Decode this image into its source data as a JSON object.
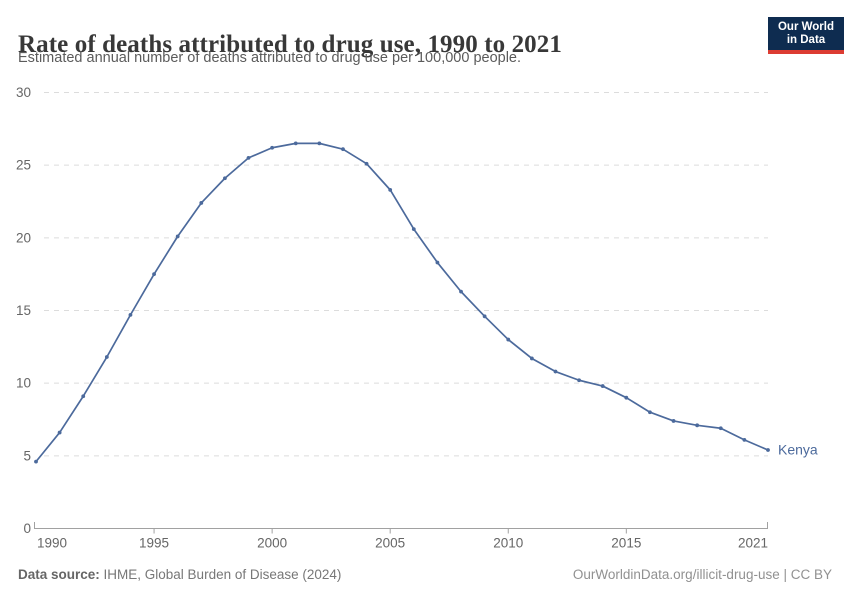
{
  "header": {
    "logo_line1": "Our World",
    "logo_line2": "in Data"
  },
  "chart_data": {
    "type": "line",
    "title": "Rate of deaths attributed to drug use, 1990 to 2021",
    "subtitle": "Estimated annual number of deaths attributed to drug use per 100,000 people.",
    "x": [
      1990,
      1991,
      1992,
      1993,
      1994,
      1995,
      1996,
      1997,
      1998,
      1999,
      2000,
      2001,
      2002,
      2003,
      2004,
      2005,
      2006,
      2007,
      2008,
      2009,
      2010,
      2011,
      2012,
      2013,
      2014,
      2015,
      2016,
      2017,
      2018,
      2019,
      2020,
      2021
    ],
    "series": [
      {
        "name": "Kenya",
        "color": "#4c6a9c",
        "values": [
          4.6,
          6.6,
          9.1,
          11.8,
          14.7,
          17.5,
          20.1,
          22.4,
          24.1,
          25.5,
          26.2,
          26.5,
          26.5,
          26.1,
          25.1,
          23.3,
          20.6,
          18.3,
          16.3,
          14.6,
          13.0,
          11.7,
          10.8,
          10.2,
          9.8,
          9.0,
          8.0,
          7.4,
          7.1,
          6.9,
          6.1,
          5.4
        ]
      }
    ],
    "ylim": [
      0,
      30
    ],
    "yticks": [
      0,
      5,
      10,
      15,
      20,
      25,
      30
    ],
    "xticks": [
      1990,
      1995,
      2000,
      2005,
      2010,
      2015,
      2021
    ],
    "grid": "horizontal dashed",
    "legend": "end-of-line label",
    "xlabel": "",
    "ylabel": ""
  },
  "footer": {
    "datasource_label": "Data source:",
    "datasource_value": " IHME, Global Burden of Disease (2024)",
    "url": "OurWorldinData.org/illicit-drug-use",
    "separator": " | ",
    "license": "CC BY"
  },
  "colors": {
    "line": "#4c6a9c",
    "logo_bg": "#0e2c50",
    "logo_red": "#dc3c32",
    "title_text": "#383838",
    "subtitle_text": "#5b5b5b",
    "axis_text": "#666666",
    "gridline": "#dcdcdc",
    "axis_line": "#a1a1a1",
    "footer_text": "#777777",
    "footer_link": "#919191"
  }
}
